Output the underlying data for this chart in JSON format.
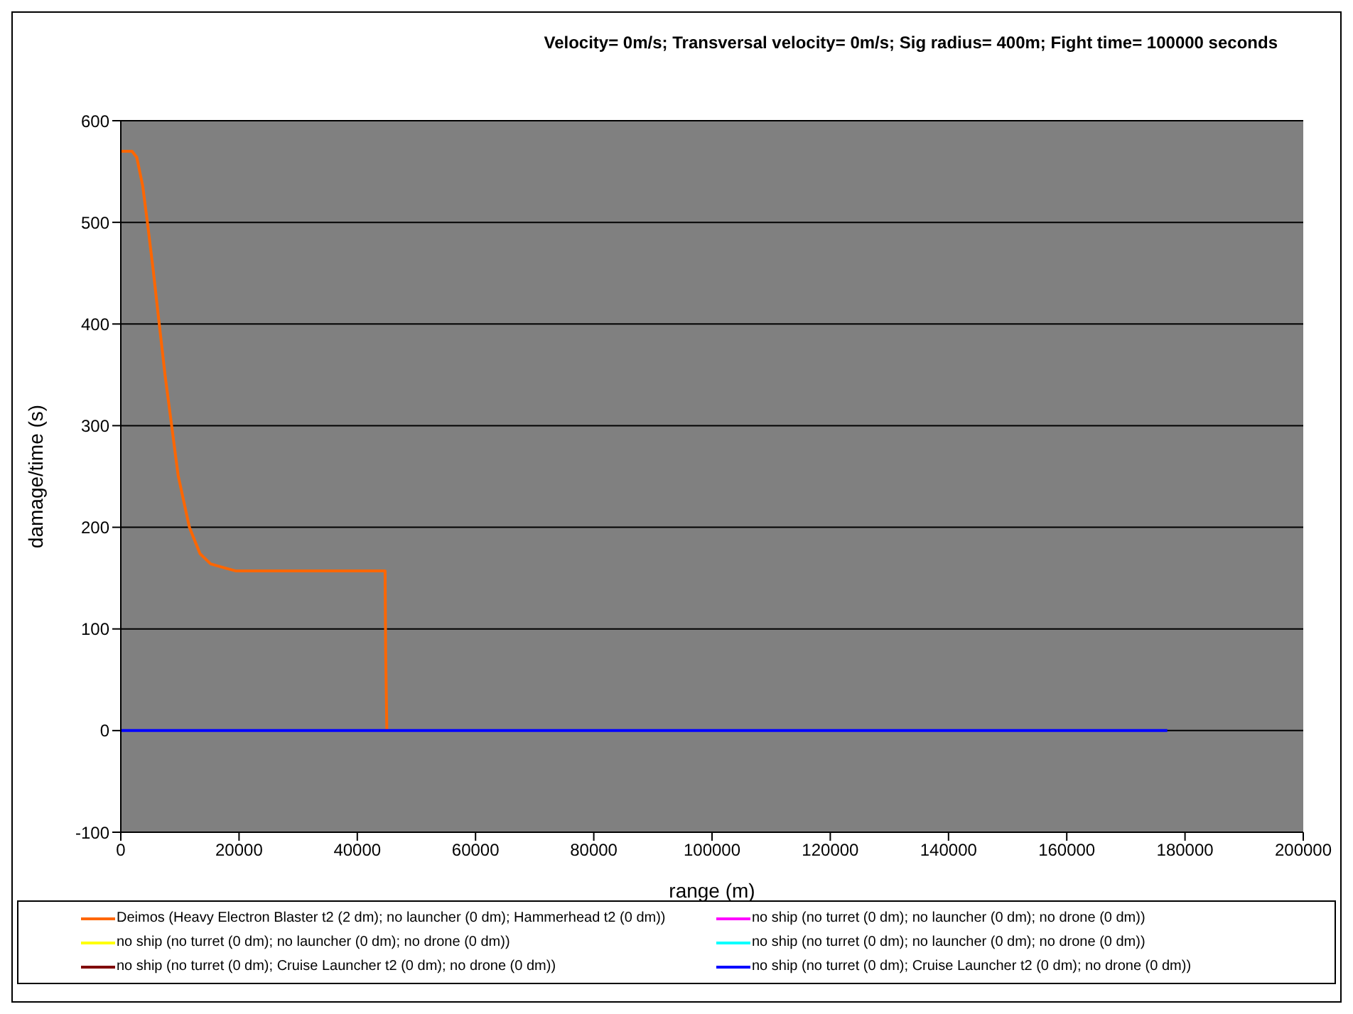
{
  "chart_data": {
    "type": "line",
    "title": "Velocity= 0m/s; Transversal velocity= 0m/s; Sig radius= 400m; Fight time= 100000 seconds",
    "xlabel": "range (m)",
    "ylabel": "damage/time (s)",
    "xlim": [
      0,
      200000
    ],
    "xticks": [
      0,
      20000,
      40000,
      60000,
      80000,
      100000,
      120000,
      140000,
      160000,
      180000,
      200000
    ],
    "ylim": [
      -100,
      600
    ],
    "yticks": [
      -100,
      0,
      100,
      200,
      300,
      400,
      500,
      600
    ],
    "grid": "y",
    "legend": "bottom",
    "marker": "none",
    "line_style": "solid",
    "series": [
      {
        "name": "Deimos (Heavy Electron Blaster t2 (2 dm); no launcher (0 dm); Hammerhead t2 (0 dm))",
        "color": "#ff6600",
        "x": [
          0,
          1900,
          2700,
          3700,
          4500,
          5500,
          6500,
          7500,
          8600,
          9700,
          11600,
          13400,
          15200,
          17600,
          19500,
          44700,
          44800,
          45000
        ],
        "values": [
          570,
          570,
          564,
          536,
          500,
          452,
          400,
          349,
          300,
          251,
          200,
          174,
          164,
          160,
          157,
          157,
          78,
          0
        ]
      },
      {
        "name": "no ship (no turret (0 dm); no launcher (0 dm); no drone (0 dm))",
        "color": "#ff00ff"
      },
      {
        "name": "no ship (no turret (0 dm); no launcher (0 dm); no drone (0 dm))",
        "color": "#ffff00"
      },
      {
        "name": "no ship (no turret (0 dm); no launcher (0 dm); no drone (0 dm))",
        "color": "#00ffff"
      },
      {
        "name": "no ship (no turret (0 dm); Cruise Launcher t2 (0 dm); no drone (0 dm))",
        "color": "#800000"
      },
      {
        "name": "no ship (no turret (0 dm); Cruise Launcher t2 (0 dm); no drone (0 dm))",
        "color": "#0000ff",
        "x": [
          0,
          177000
        ],
        "values": [
          0,
          0
        ]
      }
    ]
  }
}
